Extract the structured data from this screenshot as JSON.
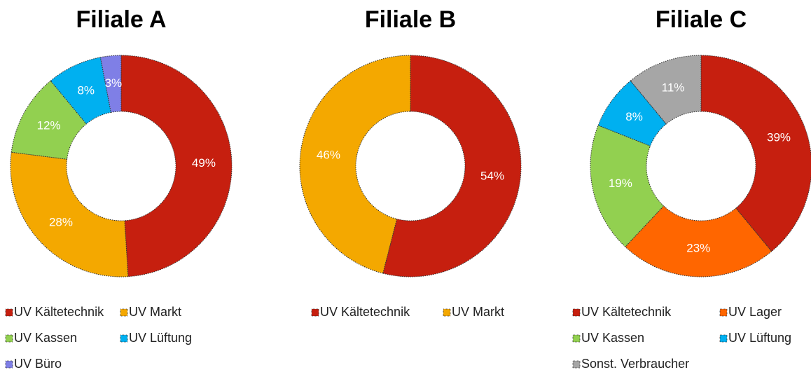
{
  "chart_data": [
    {
      "type": "pie",
      "title": "Filiale A",
      "categories": [
        "UV Kältetechnik",
        "UV Markt",
        "UV Kassen",
        "UV Lüftung",
        "UV Büro"
      ],
      "values": [
        49,
        28,
        12,
        8,
        3
      ],
      "value_labels": [
        "49%",
        "28%",
        "12%",
        "8%",
        "3%"
      ],
      "colors": [
        "#c61f0f",
        "#f4a800",
        "#92d050",
        "#00b0f0",
        "#7f7fe6"
      ]
    },
    {
      "type": "pie",
      "title": "Filiale B",
      "categories": [
        "UV Kältetechnik",
        "UV Markt"
      ],
      "values": [
        54,
        46
      ],
      "value_labels": [
        "54%",
        "46%"
      ],
      "colors": [
        "#c61f0f",
        "#f4a800"
      ]
    },
    {
      "type": "pie",
      "title": "Filiale C",
      "categories": [
        "UV Kältetechnik",
        "UV Lager",
        "UV Kassen",
        "UV Lüftung",
        "Sonst. Verbraucher"
      ],
      "values": [
        39,
        23,
        19,
        8,
        11
      ],
      "value_labels": [
        "39%",
        "23%",
        "19%",
        "8%",
        "11%"
      ],
      "colors": [
        "#c61f0f",
        "#ff6600",
        "#92d050",
        "#00b0f0",
        "#a6a6a6"
      ]
    }
  ]
}
